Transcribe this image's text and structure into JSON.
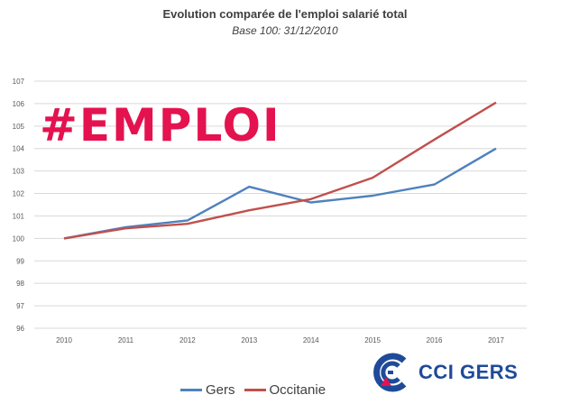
{
  "chart_data": {
    "type": "line",
    "title": "Evolution comparée de l'emploi salarié total",
    "subtitle": "Base 100: 31/12/2010",
    "categories": [
      "2010",
      "2011",
      "2012",
      "2013",
      "2014",
      "2015",
      "2016",
      "2017"
    ],
    "y_ticks": [
      "96",
      "97",
      "98",
      "99",
      "100",
      "101",
      "102",
      "103",
      "104",
      "105",
      "106",
      "107"
    ],
    "ylim": [
      96,
      107
    ],
    "grid": true,
    "legend_position": "bottom",
    "series": [
      {
        "name": "Gers",
        "color": "#4f81bd",
        "values": [
          100.0,
          100.5,
          100.8,
          102.3,
          101.6,
          101.9,
          102.4,
          104.0
        ]
      },
      {
        "name": "Occitanie",
        "color": "#c0504d",
        "values": [
          100.0,
          100.45,
          100.65,
          101.25,
          101.75,
          102.7,
          104.4,
          106.05
        ]
      }
    ]
  },
  "overlay_text": "#EMPLOI",
  "logo": {
    "text": "CCI GERS",
    "color": "#1f4a99",
    "accent": "#e4124f"
  }
}
